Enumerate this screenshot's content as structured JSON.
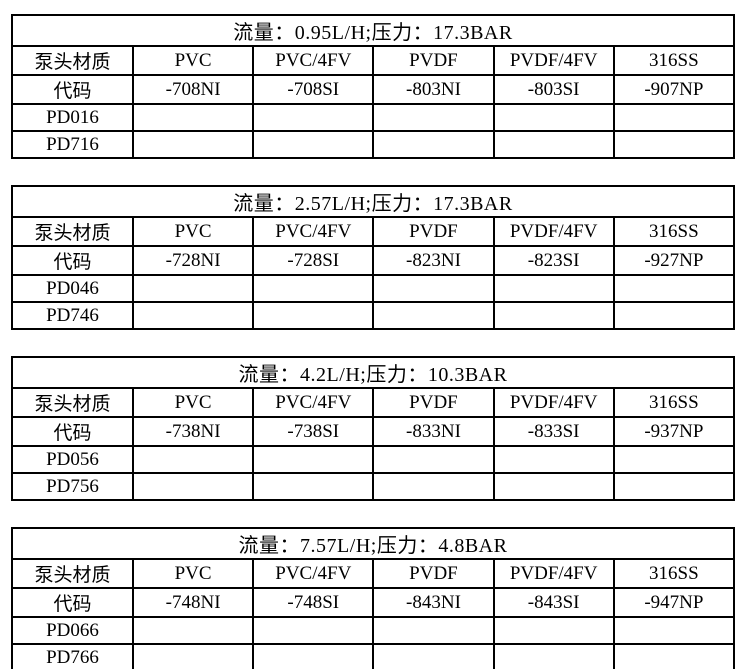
{
  "page": {
    "background_color": "#ffffff",
    "border_color": "#000000",
    "text_color": "#000000"
  },
  "tables": [
    {
      "title": "流量：0.95L/H;压力：17.3BAR",
      "header": [
        "泵头材质",
        "PVC",
        "PVC/4FV",
        "PVDF",
        "PVDF/4FV",
        "316SS"
      ],
      "rows": [
        [
          "代码",
          "-708NI",
          "-708SI",
          "-803NI",
          "-803SI",
          "-907NP"
        ],
        [
          "PD016",
          "",
          "",
          "",
          "",
          ""
        ],
        [
          "PD716",
          "",
          "",
          "",
          "",
          ""
        ]
      ]
    },
    {
      "title": "流量：2.57L/H;压力：17.3BAR",
      "header": [
        "泵头材质",
        "PVC",
        "PVC/4FV",
        "PVDF",
        "PVDF/4FV",
        "316SS"
      ],
      "rows": [
        [
          "代码",
          "-728NI",
          "-728SI",
          "-823NI",
          "-823SI",
          "-927NP"
        ],
        [
          "PD046",
          "",
          "",
          "",
          "",
          ""
        ],
        [
          "PD746",
          "",
          "",
          "",
          "",
          ""
        ]
      ]
    },
    {
      "title": "流量：4.2L/H;压力：10.3BAR",
      "header": [
        "泵头材质",
        "PVC",
        "PVC/4FV",
        "PVDF",
        "PVDF/4FV",
        "316SS"
      ],
      "rows": [
        [
          "代码",
          "-738NI",
          "-738SI",
          "-833NI",
          "-833SI",
          "-937NP"
        ],
        [
          "PD056",
          "",
          "",
          "",
          "",
          ""
        ],
        [
          "PD756",
          "",
          "",
          "",
          "",
          ""
        ]
      ]
    },
    {
      "title": "流量：7.57L/H;压力：4.8BAR",
      "header": [
        "泵头材质",
        "PVC",
        "PVC/4FV",
        "PVDF",
        "PVDF/4FV",
        "316SS"
      ],
      "rows": [
        [
          "代码",
          "-748NI",
          "-748SI",
          "-843NI",
          "-843SI",
          "-947NP"
        ],
        [
          "PD066",
          "",
          "",
          "",
          "",
          ""
        ],
        [
          "PD766",
          "",
          "",
          "",
          "",
          ""
        ]
      ]
    }
  ]
}
